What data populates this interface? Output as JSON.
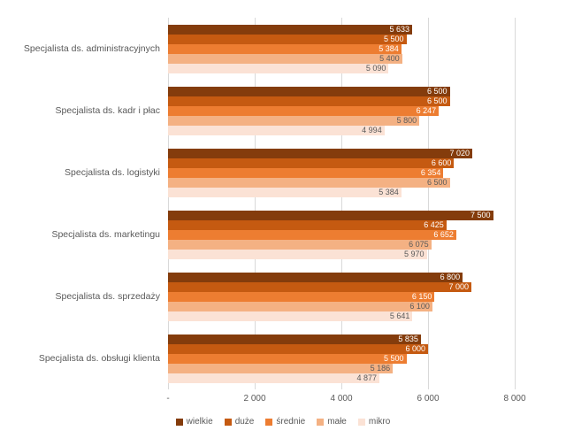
{
  "chart_data": {
    "type": "bar",
    "orientation": "horizontal",
    "title": "",
    "xlabel": "",
    "ylabel": "",
    "xlim": [
      0,
      8000
    ],
    "x_ticks": [
      "-",
      "2 000",
      "4 000",
      "6 000",
      "8 000"
    ],
    "grid": true,
    "legend_position": "bottom",
    "categories": [
      "Specjalista ds. administracyjnych",
      "Specjalista ds. kadr i płac",
      "Specjalista ds. logistyki",
      "Specjalista ds. marketingu",
      "Specjalista ds. sprzedaży",
      "Specjalista ds. obsługi klienta"
    ],
    "series": [
      {
        "name": "wielkie",
        "color": "#843c0c",
        "label_color": "#ffffff",
        "values": [
          5633,
          6500,
          7020,
          7500,
          6800,
          5835
        ]
      },
      {
        "name": "duże",
        "color": "#c55a11",
        "label_color": "#ffffff",
        "values": [
          5500,
          6500,
          6600,
          6425,
          7000,
          6000
        ]
      },
      {
        "name": "średnie",
        "color": "#ed7d31",
        "label_color": "#ffffff",
        "values": [
          5384,
          6247,
          6354,
          6652,
          6150,
          5500
        ]
      },
      {
        "name": "małe",
        "color": "#f4b183",
        "label_color": "#595959",
        "values": [
          5400,
          5800,
          6500,
          6075,
          6100,
          5186
        ]
      },
      {
        "name": "mikro",
        "color": "#fbe2d5",
        "label_color": "#595959",
        "values": [
          5090,
          4994,
          5384,
          5970,
          5641,
          4877
        ]
      }
    ],
    "colors": {
      "grid": "#d9d9d9",
      "axis_text": "#595959"
    }
  }
}
